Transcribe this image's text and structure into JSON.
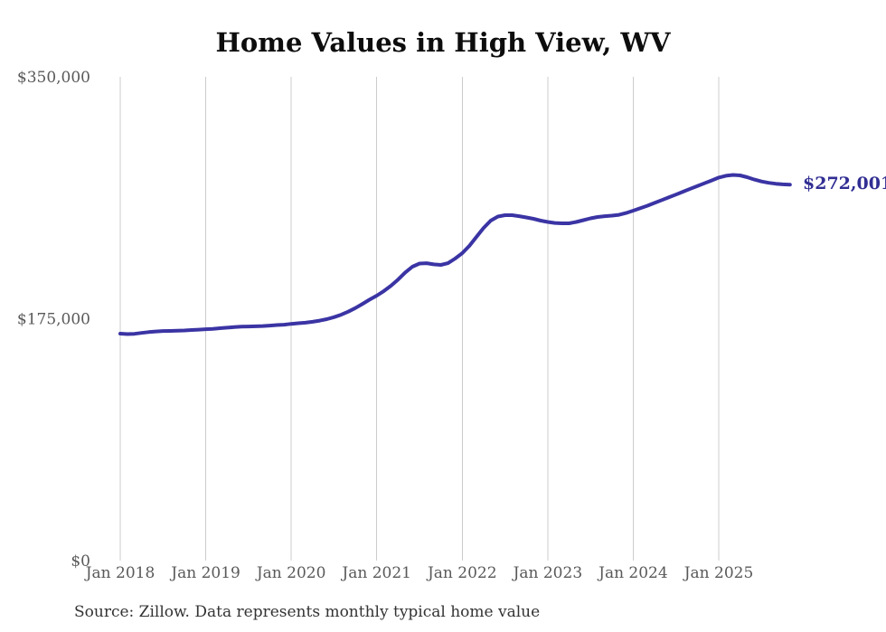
{
  "title": "Home Values in High View, WV",
  "source_note": "Source: Zillow. Data represents monthly typical home value",
  "end_label": "$272,001",
  "colors": {
    "line": "#3a34a4",
    "end_label": "#312e93",
    "grid": "#cccccc",
    "axis_text": "#595959",
    "title_text": "#0d0d0d",
    "source_text": "#333333",
    "background": "#ffffff"
  },
  "chart_data": {
    "type": "line",
    "title": "Home Values in High View, WV",
    "xlabel": "",
    "ylabel": "",
    "ylim": [
      0,
      350000
    ],
    "grid": "vertical-only",
    "legend_position": "none",
    "x_interval": "monthly",
    "x_start": "Jan 2018",
    "x_end": "Nov 2025",
    "x_tick_labels": [
      "Jan 2018",
      "Jan 2019",
      "Jan 2020",
      "Jan 2021",
      "Jan 2022",
      "Jan 2023",
      "Jan 2024",
      "Jan 2025"
    ],
    "y_ticks": [
      {
        "label": "$0",
        "value": 0
      },
      {
        "label": "$175,000",
        "value": 175000
      },
      {
        "label": "$350,000",
        "value": 350000
      }
    ],
    "end_value_label": "$272,001",
    "series": [
      {
        "name": "Typical home value",
        "values": [
          164200,
          163900,
          164100,
          164700,
          165300,
          165800,
          166100,
          166200,
          166300,
          166500,
          166800,
          167100,
          167400,
          167700,
          168100,
          168500,
          168900,
          169300,
          169400,
          169500,
          169700,
          170000,
          170400,
          170700,
          171300,
          171700,
          172100,
          172800,
          173600,
          174700,
          176100,
          177900,
          180100,
          182700,
          185700,
          188800,
          191700,
          195000,
          198900,
          203400,
          208400,
          212600,
          214900,
          215200,
          214300,
          213900,
          215200,
          218500,
          222400,
          227700,
          234200,
          240700,
          246000,
          248900,
          249900,
          249900,
          249200,
          248300,
          247300,
          246000,
          245000,
          244300,
          244000,
          244000,
          245000,
          246300,
          247600,
          248600,
          249200,
          249600,
          250200,
          251500,
          253200,
          255000,
          256800,
          258800,
          260800,
          262800,
          264800,
          266900,
          269000,
          271000,
          273000,
          275000,
          277100,
          278400,
          279000,
          278700,
          277400,
          275700,
          274300,
          273300,
          272700,
          272200,
          272001
        ]
      }
    ]
  }
}
